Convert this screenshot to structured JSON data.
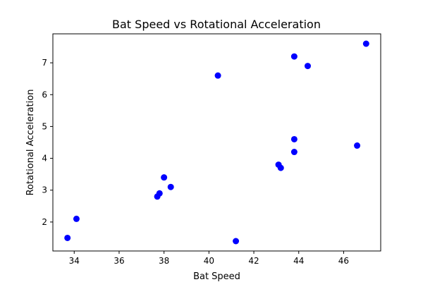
{
  "chart_data": {
    "type": "scatter",
    "title": "Bat Speed vs Rotational Acceleration",
    "xlabel": "Bat Speed",
    "ylabel": "Rotational Acceleration",
    "xlim": [
      33.05,
      47.65
    ],
    "ylim": [
      1.09,
      7.91
    ],
    "xticks": [
      34,
      36,
      38,
      40,
      42,
      44,
      46
    ],
    "yticks": [
      2,
      3,
      4,
      5,
      6,
      7
    ],
    "grid": false,
    "marker_color": "#0000ff",
    "points": [
      {
        "x": 33.7,
        "y": 1.5
      },
      {
        "x": 34.1,
        "y": 2.1
      },
      {
        "x": 37.7,
        "y": 2.8
      },
      {
        "x": 37.8,
        "y": 2.9
      },
      {
        "x": 38.0,
        "y": 3.4
      },
      {
        "x": 38.3,
        "y": 3.1
      },
      {
        "x": 40.4,
        "y": 6.6
      },
      {
        "x": 41.2,
        "y": 1.4
      },
      {
        "x": 43.1,
        "y": 3.8
      },
      {
        "x": 43.2,
        "y": 3.7
      },
      {
        "x": 43.8,
        "y": 7.2
      },
      {
        "x": 43.8,
        "y": 4.6
      },
      {
        "x": 43.8,
        "y": 4.2
      },
      {
        "x": 44.4,
        "y": 6.9
      },
      {
        "x": 46.6,
        "y": 4.4
      },
      {
        "x": 47.0,
        "y": 7.6
      }
    ]
  }
}
